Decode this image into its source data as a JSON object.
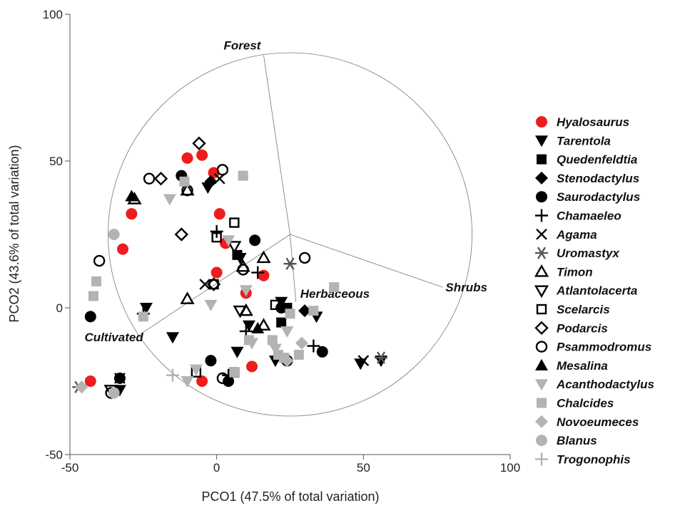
{
  "chart_data": {
    "type": "scatter",
    "xlabel": "PCO1 (47.5% of total variation)",
    "ylabel": "PCO2 (43.6% of total variation)",
    "xlim": [
      -50,
      100
    ],
    "ylim": [
      -50,
      100
    ],
    "xticks": [
      -50,
      0,
      50,
      100
    ],
    "yticks": [
      -50,
      0,
      50,
      100
    ],
    "circle": {
      "center": [
        25,
        25
      ],
      "radius": 62
    },
    "vectors": [
      {
        "label": "Forest",
        "end": [
          16,
          86
        ]
      },
      {
        "label": "Herbaceous",
        "end": [
          27,
          2
        ]
      },
      {
        "label": "Shrubs",
        "end": [
          77,
          7
        ]
      },
      {
        "label": "Cultivated",
        "end": [
          -26,
          -9
        ]
      }
    ],
    "legend_position": "right",
    "series": [
      {
        "name": "Hyalosaurus",
        "color": "#ee1c1c",
        "marker": "filled-circle",
        "points": [
          [
            -10,
            51
          ],
          [
            -5,
            52
          ],
          [
            -1,
            46
          ],
          [
            -29,
            32
          ],
          [
            -32,
            20
          ],
          [
            1,
            32
          ],
          [
            0,
            12
          ],
          [
            3,
            22
          ],
          [
            10,
            5
          ],
          [
            16,
            11
          ],
          [
            12,
            -20
          ],
          [
            -5,
            -25
          ],
          [
            -43,
            -25
          ]
        ]
      },
      {
        "name": "Tarentola",
        "color": "#000000",
        "marker": "filled-triangle-down",
        "points": [
          [
            -3,
            41
          ],
          [
            -24,
            0
          ],
          [
            -15,
            -10
          ],
          [
            7,
            -15
          ],
          [
            8,
            17
          ],
          [
            11,
            -6
          ],
          [
            22,
            2
          ],
          [
            20,
            -18
          ],
          [
            34,
            -3
          ],
          [
            49,
            -19
          ],
          [
            56,
            -18
          ],
          [
            -33,
            -28
          ]
        ]
      },
      {
        "name": "Quedenfeldtia",
        "color": "#000000",
        "marker": "filled-square",
        "points": [
          [
            22,
            -5
          ],
          [
            24,
            0
          ],
          [
            7,
            18
          ]
        ]
      },
      {
        "name": "Stenodactylus",
        "color": "#000000",
        "marker": "filled-diamond",
        "points": [
          [
            -2,
            43
          ],
          [
            30,
            -1
          ]
        ]
      },
      {
        "name": "Saurodactylus",
        "color": "#000000",
        "marker": "filled-circle",
        "points": [
          [
            -12,
            45
          ],
          [
            13,
            23
          ],
          [
            -43,
            -3
          ],
          [
            36,
            -15
          ],
          [
            -2,
            -18
          ],
          [
            4,
            -25
          ],
          [
            22,
            0
          ],
          [
            -33,
            -24
          ]
        ]
      },
      {
        "name": "Chamaeleo",
        "color": "#000000",
        "marker": "plus",
        "points": [
          [
            0,
            26
          ],
          [
            14,
            12
          ],
          [
            -25,
            -2
          ],
          [
            10,
            -8
          ],
          [
            33,
            -13
          ],
          [
            4,
            -23
          ]
        ]
      },
      {
        "name": "Agama",
        "color": "#000000",
        "marker": "x",
        "points": [
          [
            1,
            44
          ],
          [
            -4,
            8
          ],
          [
            50,
            -18
          ],
          [
            -33,
            -24
          ]
        ]
      },
      {
        "name": "Uromastyx",
        "color": "#555555",
        "marker": "asterisk",
        "points": [
          [
            25,
            15
          ],
          [
            56,
            -17
          ],
          [
            -47,
            -27
          ]
        ]
      },
      {
        "name": "Timon",
        "color": "#000000",
        "marker": "open-triangle-up",
        "points": [
          [
            -28,
            37
          ],
          [
            -10,
            40
          ],
          [
            16,
            17
          ],
          [
            -10,
            3
          ],
          [
            9,
            14
          ],
          [
            10,
            -1
          ],
          [
            16,
            -6
          ]
        ]
      },
      {
        "name": "Atlantolacerta",
        "color": "#000000",
        "marker": "open-triangle-down",
        "points": [
          [
            6,
            21
          ],
          [
            8,
            -1
          ],
          [
            -36,
            -28
          ]
        ]
      },
      {
        "name": "Scelarcis",
        "color": "#000000",
        "marker": "open-square",
        "points": [
          [
            6,
            29
          ],
          [
            0,
            24
          ],
          [
            -1,
            8
          ],
          [
            20,
            1
          ],
          [
            -7,
            -22
          ],
          [
            6,
            -22
          ]
        ]
      },
      {
        "name": "Podarcis",
        "color": "#000000",
        "marker": "open-diamond",
        "points": [
          [
            -6,
            56
          ],
          [
            -19,
            44
          ],
          [
            -12,
            25
          ],
          [
            -1,
            8
          ]
        ]
      },
      {
        "name": "Psammodromus",
        "color": "#000000",
        "marker": "open-circle",
        "points": [
          [
            -23,
            44
          ],
          [
            -10,
            40
          ],
          [
            2,
            47
          ],
          [
            -40,
            16
          ],
          [
            30,
            17
          ],
          [
            9,
            13
          ],
          [
            24,
            -18
          ],
          [
            2,
            -24
          ],
          [
            -36,
            -29
          ]
        ]
      },
      {
        "name": "Mesalina",
        "color": "#000000",
        "marker": "filled-triangle-up",
        "points": [
          [
            -29,
            38
          ],
          [
            14,
            -7
          ]
        ]
      },
      {
        "name": "Acanthodactylus",
        "color": "#b3b3b3",
        "marker": "filled-triangle-down",
        "points": [
          [
            -16,
            37
          ],
          [
            4,
            23
          ],
          [
            10,
            6
          ],
          [
            -2,
            1
          ],
          [
            12,
            -12
          ],
          [
            24,
            -8
          ],
          [
            20,
            -14
          ],
          [
            -7,
            -21
          ],
          [
            -10,
            -25
          ]
        ]
      },
      {
        "name": "Chalcides",
        "color": "#b3b3b3",
        "marker": "filled-square",
        "points": [
          [
            9,
            45
          ],
          [
            -11,
            43
          ],
          [
            -42,
            4
          ],
          [
            -41,
            9
          ],
          [
            40,
            7
          ],
          [
            25,
            -2
          ],
          [
            33,
            -1
          ],
          [
            19,
            -11
          ],
          [
            21,
            -16
          ],
          [
            23,
            -17
          ],
          [
            28,
            -16
          ],
          [
            11,
            -11
          ],
          [
            6,
            -22
          ],
          [
            -25,
            -3
          ]
        ]
      },
      {
        "name": "Novoeumeces",
        "color": "#b3b3b3",
        "marker": "filled-diamond",
        "points": [
          [
            29,
            -12
          ],
          [
            24,
            -18
          ],
          [
            -46,
            -27
          ]
        ]
      },
      {
        "name": "Blanus",
        "color": "#b3b3b3",
        "marker": "filled-circle",
        "points": [
          [
            -35,
            25
          ],
          [
            -35,
            -29
          ]
        ]
      },
      {
        "name": "Trogonophis",
        "color": "#b3b3b3",
        "marker": "plus",
        "points": [
          [
            -15,
            -23
          ]
        ]
      }
    ]
  }
}
